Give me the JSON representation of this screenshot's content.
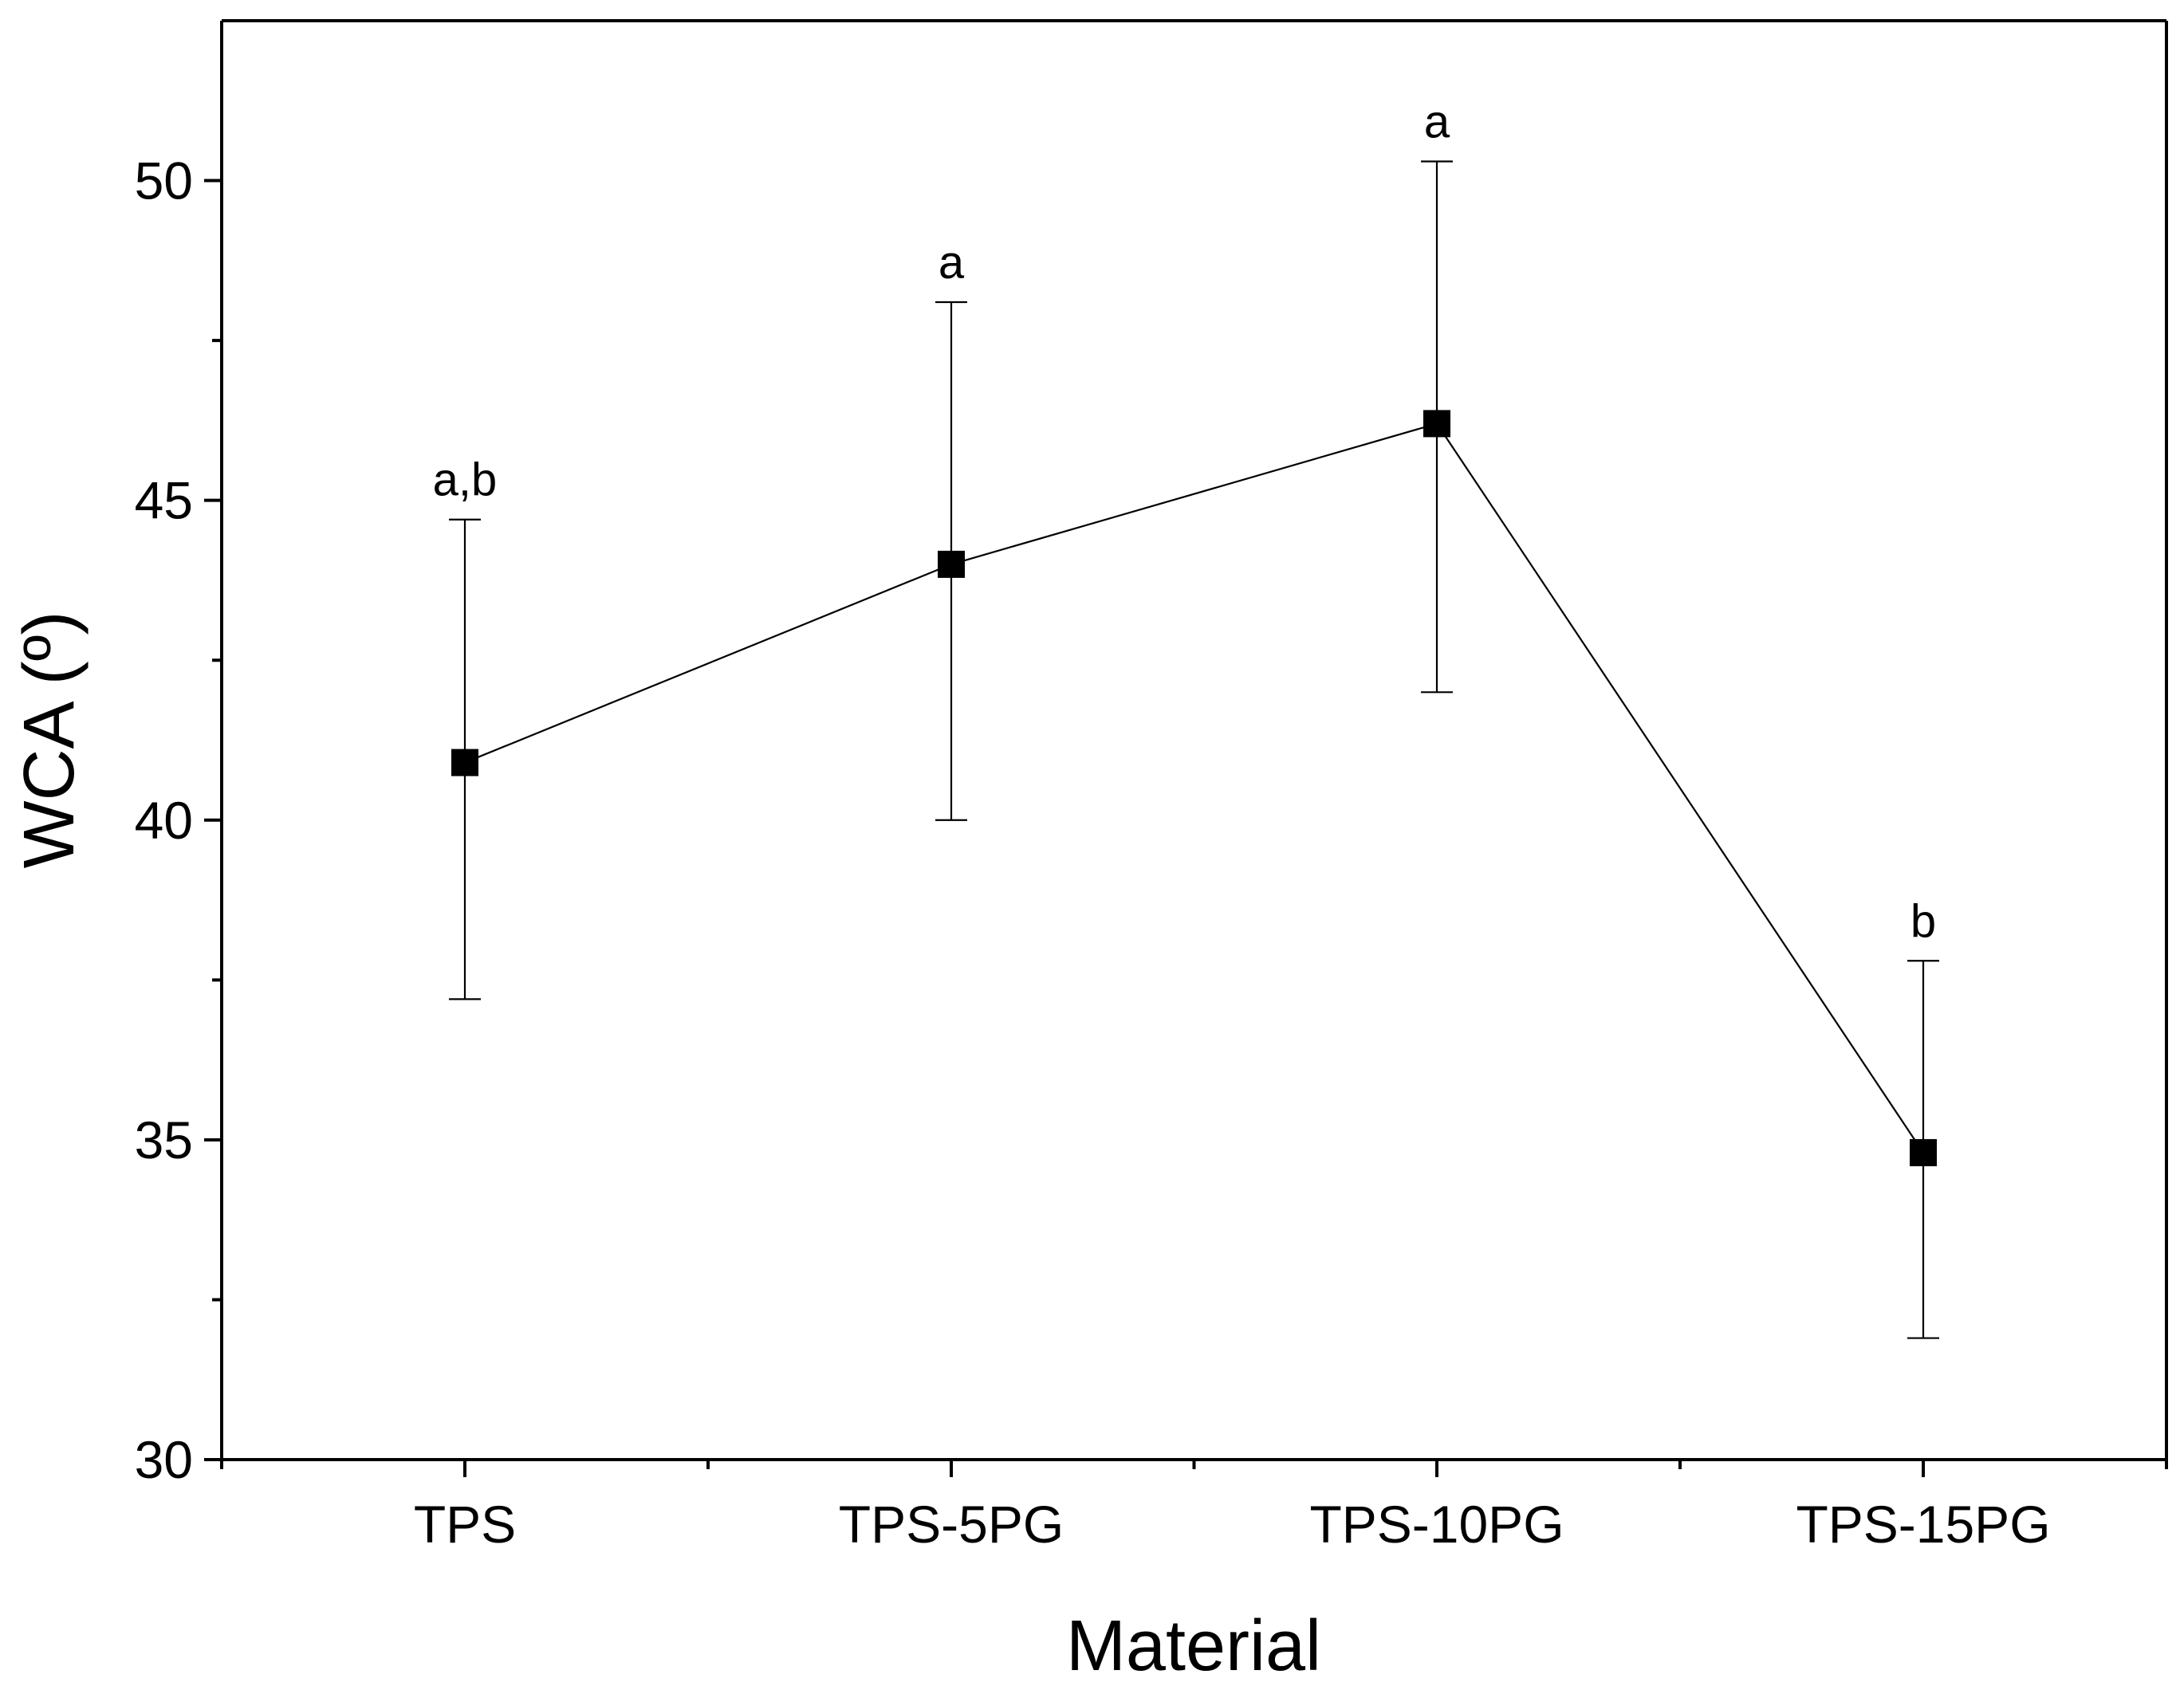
{
  "chart_data": {
    "type": "line",
    "title": "",
    "xlabel": "Material",
    "ylabel": "WCA (º)",
    "categories": [
      "TPS",
      "TPS-5PG",
      "TPS-10PG",
      "TPS-15PG"
    ],
    "series": [
      {
        "name": "WCA",
        "values": [
          40.9,
          44.0,
          46.2,
          34.8
        ],
        "error_lower": [
          37.2,
          40.0,
          42.0,
          31.9
        ],
        "error_upper": [
          44.7,
          48.1,
          50.3,
          37.8
        ],
        "annotations": [
          "a,b",
          "a",
          "a",
          "b"
        ],
        "marker": "square",
        "color": "#000000"
      }
    ],
    "ylim": [
      30,
      52.5
    ],
    "yticks": [
      30,
      35,
      40,
      45,
      50
    ],
    "yticks_minor": [
      32.5,
      37.5,
      42.5,
      47.5
    ],
    "grid": false,
    "legend": "none"
  }
}
